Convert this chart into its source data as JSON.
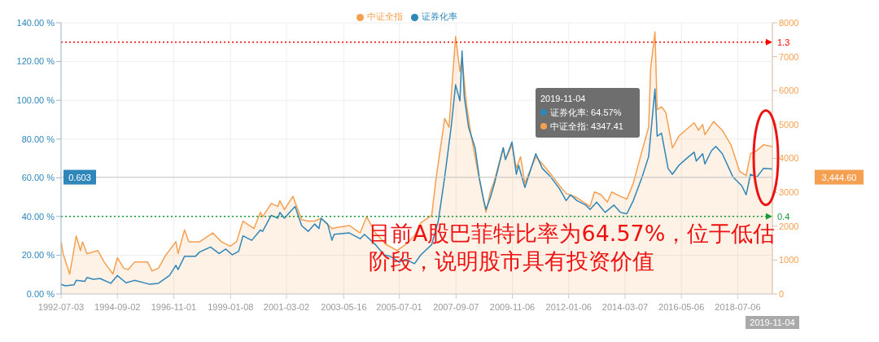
{
  "chart_data": {
    "type": "line",
    "xlim": [
      "1992-07-03",
      "2019-11-04"
    ],
    "xticks": [
      "1992-07-03",
      "1994-09-02",
      "1996-11-01",
      "1999-01-08",
      "2001-03-02",
      "2003-05-16",
      "2005-07-01",
      "2007-09-07",
      "2009-11-06",
      "2012-01-06",
      "2014-03-07",
      "2016-05-06",
      "2018-07-06"
    ],
    "ylim": [
      0,
      1.4
    ],
    "yticks": [
      {
        "value": 0,
        "label": "0.00 %"
      },
      {
        "value": 0.2,
        "label": "20.00 %"
      },
      {
        "value": 0.4,
        "label": "40.00 %"
      },
      {
        "value": 0.6,
        "label": "60.00 %"
      },
      {
        "value": 0.8,
        "label": "80.00 %"
      },
      {
        "value": 1.0,
        "label": "100.00 %"
      },
      {
        "value": 1.2,
        "label": "120.00 %"
      },
      {
        "value": 1.4,
        "label": "140.00 %"
      }
    ],
    "y2lim": [
      0,
      8000
    ],
    "y2ticks": [
      0,
      1000,
      2000,
      3000,
      4000,
      5000,
      6000,
      7000,
      8000
    ],
    "grid": true,
    "legend": "top",
    "marker": "none",
    "line_style": "solid",
    "series": [
      {
        "name": "证券化率",
        "color": "#2f86b8",
        "x": [
          "1992-07-03",
          "1992-09",
          "1993-01",
          "1993-02",
          "1993-06",
          "1993-07",
          "1993-10",
          "1994-01",
          "1994-06",
          "1994-09",
          "1995-01",
          "1995-05",
          "1995-12",
          "1996-04",
          "1996-09",
          "1996-12",
          "1997-01",
          "1997-04",
          "1997-09",
          "1997-11",
          "1998-04",
          "1998-08",
          "1998-11",
          "1999-02",
          "1999-05",
          "1999-07",
          "1999-11",
          "2000-03",
          "2000-04",
          "2000-08",
          "2000-11",
          "2000-12",
          "2001-02",
          "2001-07",
          "2001-10",
          "2002-01",
          "2002-04",
          "2002-06",
          "2002-07",
          "2002-10",
          "2002-12",
          "2003-01",
          "2003-08",
          "2004-01",
          "2004-03",
          "2004-08",
          "2004-12",
          "2005-03",
          "2005-07",
          "2005-10",
          "2006-02",
          "2006-05",
          "2006-10",
          "2007-01",
          "2007-04",
          "2007-07",
          "2007-09",
          "2007-11",
          "2007-12",
          "2008-01",
          "2008-03",
          "2008-06",
          "2008-08",
          "2008-10",
          "2008-11",
          "2009-01",
          "2009-03",
          "2009-07",
          "2009-08",
          "2009-11",
          "2010-01",
          "2010-02",
          "2010-05",
          "2010-10",
          "2011-01",
          "2011-05",
          "2011-09",
          "2011-12",
          "2012-02",
          "2012-05",
          "2012-09",
          "2012-11",
          "2013-02",
          "2013-06",
          "2013-10",
          "2014-01",
          "2014-04",
          "2014-07",
          "2014-11",
          "2015-02",
          "2015-05",
          "2015-06",
          "2015-08",
          "2015-11",
          "2016-01",
          "2016-04",
          "2016-07",
          "2016-11",
          "2016-12",
          "2017-03",
          "2017-04",
          "2017-07",
          "2017-09",
          "2017-12",
          "2018-05",
          "2018-09",
          "2018-11",
          "2019-01",
          "2019-04",
          "2019-07",
          "2019-11-04"
        ],
        "values": [
          0.05,
          0.042,
          0.047,
          0.07,
          0.065,
          0.085,
          0.076,
          0.08,
          0.055,
          0.095,
          0.058,
          0.07,
          0.05,
          0.055,
          0.095,
          0.148,
          0.126,
          0.194,
          0.194,
          0.217,
          0.242,
          0.209,
          0.232,
          0.202,
          0.22,
          0.3,
          0.277,
          0.33,
          0.323,
          0.406,
          0.391,
          0.421,
          0.391,
          0.452,
          0.353,
          0.323,
          0.361,
          0.338,
          0.391,
          0.361,
          0.277,
          0.308,
          0.315,
          0.285,
          0.308,
          0.255,
          0.202,
          0.194,
          0.164,
          0.179,
          0.156,
          0.202,
          0.255,
          0.376,
          0.603,
          0.861,
          1.08,
          0.997,
          1.255,
          1.02,
          0.861,
          0.755,
          0.595,
          0.482,
          0.436,
          0.497,
          0.573,
          0.755,
          0.694,
          0.785,
          0.618,
          0.664,
          0.55,
          0.724,
          0.648,
          0.603,
          0.542,
          0.482,
          0.512,
          0.482,
          0.459,
          0.436,
          0.474,
          0.421,
          0.459,
          0.421,
          0.414,
          0.482,
          0.603,
          0.709,
          1.058,
          0.815,
          0.83,
          0.648,
          0.618,
          0.664,
          0.694,
          0.732,
          0.686,
          0.724,
          0.671,
          0.739,
          0.762,
          0.724,
          0.603,
          0.558,
          0.512,
          0.618,
          0.603,
          0.648,
          0.6457
        ]
      },
      {
        "name": "中证全指",
        "type": "area",
        "axis": "y2",
        "color": "#f5a050",
        "x": [
          "1992-07-03",
          "1992-08",
          "1992-11",
          "1992-12",
          "1993-02",
          "1993-04",
          "1993-05",
          "1993-07",
          "1993-12",
          "1994-03",
          "1994-07",
          "1994-09",
          "1994-12",
          "1995-02",
          "1995-05",
          "1995-11",
          "1996-01",
          "1996-04",
          "1996-07",
          "1996-12",
          "1997-01",
          "1997-04",
          "1997-06",
          "1997-11",
          "1998-05",
          "1998-09",
          "1999-01",
          "1999-04",
          "1999-07",
          "1999-12",
          "2000-03",
          "2000-04",
          "2000-08",
          "2000-11",
          "2000-12",
          "2001-02",
          "2001-06",
          "2001-10",
          "2002-01",
          "2002-04",
          "2002-07",
          "2002-12",
          "2003-03",
          "2003-08",
          "2004-01",
          "2004-04",
          "2004-08",
          "2005-01",
          "2005-06",
          "2005-10",
          "2006-02",
          "2006-05",
          "2006-10",
          "2006-12",
          "2007-04",
          "2007-06",
          "2007-09",
          "2007-11",
          "2007-12",
          "2008-02",
          "2008-04",
          "2008-06",
          "2008-08",
          "2008-11",
          "2009-01",
          "2009-03",
          "2009-07",
          "2009-08",
          "2009-11",
          "2010-01",
          "2010-03",
          "2010-05",
          "2010-10",
          "2011-01",
          "2011-05",
          "2011-09",
          "2011-12",
          "2012-05",
          "2012-09",
          "2012-11",
          "2013-01",
          "2013-04",
          "2013-07",
          "2013-09",
          "2014-01",
          "2014-04",
          "2014-07",
          "2014-11",
          "2015-02",
          "2015-03",
          "2015-05",
          "2015-06",
          "2015-08",
          "2015-10",
          "2016-01",
          "2016-04",
          "2016-07",
          "2016-11",
          "2017-01",
          "2017-03",
          "2017-04",
          "2017-08",
          "2017-12",
          "2018-04",
          "2018-08",
          "2018-11",
          "2019-01",
          "2019-04",
          "2019-07",
          "2019-11-04"
        ],
        "values": [
          1540,
          1190,
          590,
          940,
          1710,
          1280,
          1540,
          1190,
          1280,
          940,
          590,
          1070,
          760,
          720,
          940,
          940,
          680,
          760,
          1110,
          1540,
          1190,
          1890,
          1540,
          1540,
          1800,
          1540,
          1410,
          1540,
          2150,
          1930,
          2410,
          2280,
          2670,
          2580,
          2750,
          2490,
          2880,
          2190,
          2150,
          2150,
          2230,
          1930,
          1970,
          2020,
          1800,
          2280,
          1800,
          1460,
          1280,
          1460,
          1710,
          2100,
          2320,
          3400,
          5180,
          4920,
          7600,
          6560,
          6950,
          5610,
          4750,
          4050,
          3360,
          2410,
          3010,
          3360,
          4310,
          3970,
          4400,
          3710,
          4050,
          3270,
          4050,
          3840,
          3530,
          3190,
          2970,
          2840,
          2670,
          2580,
          3010,
          2930,
          2710,
          3010,
          2880,
          2800,
          3270,
          4230,
          4920,
          6650,
          7730,
          5440,
          5520,
          5350,
          4310,
          4660,
          4830,
          5050,
          4830,
          5000,
          4700,
          5090,
          4830,
          4400,
          3620,
          3490,
          4140,
          4230,
          4400,
          4347.41
        ]
      }
    ],
    "ref_lines": [
      {
        "axis": "y",
        "value": 1.3,
        "label": "1.3",
        "color": "#ff0000",
        "line_style": "dotted"
      },
      {
        "axis": "y",
        "value": 0.4,
        "label": "0.4",
        "color": "#1a9a3a",
        "line_style": "dotted"
      },
      {
        "axis": "y",
        "value": 0.603,
        "label": "0.603",
        "color": "#cccccc",
        "line_style": "solid"
      }
    ],
    "annotations": [
      "2019-11-04",
      "证券化率: 64.57%",
      "中证全指: 4347.41",
      "目前A股巴菲特比率为64.57%，位于低估阶段，说明股市具有投资价值",
      "3,444.60",
      "2019-11-04"
    ]
  }
}
